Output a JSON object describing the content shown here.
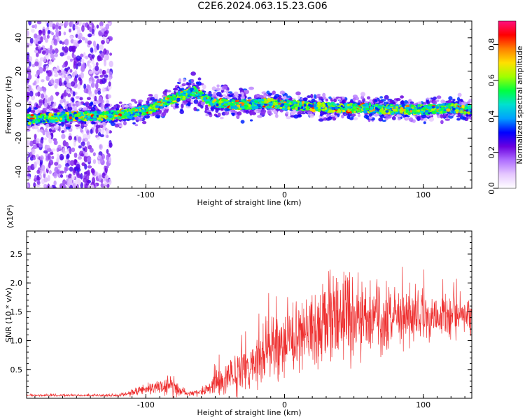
{
  "title": "C2E6.2024.063.15.23.G06",
  "chart_data": [
    {
      "type": "heatmap",
      "xlabel": "Height of straight line (km)",
      "ylabel": "Frequency (Hz)",
      "xlim": [
        -186,
        135
      ],
      "ylim": [
        -50,
        50
      ],
      "xticks": [
        -100,
        0,
        100
      ],
      "xtick_labels": [
        "-100",
        "0",
        "100"
      ],
      "yticks": [
        -40,
        -20,
        0,
        20,
        40
      ],
      "ytick_labels": [
        "-40",
        "-20",
        "0",
        "20",
        "40"
      ],
      "colorbar": {
        "label": "Normalized spectral amplitude",
        "range": [
          0,
          0.93
        ],
        "ticks": [
          0,
          0.2,
          0.4,
          0.6,
          0.8
        ],
        "tick_labels": [
          "0.0",
          "0.2",
          "0.4",
          "0.6",
          "0.8"
        ],
        "colors": [
          "#ffffff",
          "#e6c8ff",
          "#b070ff",
          "#6a00e0",
          "#0000ff",
          "#00a0ff",
          "#00e0d0",
          "#00ff40",
          "#a0ff00",
          "#ffe000",
          "#ff8000",
          "#ff0000",
          "#ff1080"
        ]
      },
      "ridge": {
        "x": [
          -186,
          -160,
          -130,
          -110,
          -95,
          -85,
          -75,
          -65,
          -55,
          -45,
          -35,
          -25,
          -15,
          0,
          20,
          40,
          60,
          80,
          100,
          120,
          135
        ],
        "y": [
          -9,
          -7,
          -7,
          -5,
          -2,
          2,
          5,
          8,
          2,
          1,
          0,
          0,
          1,
          0,
          -1,
          -2,
          -2,
          -3,
          -3,
          -2,
          -3
        ]
      }
    },
    {
      "type": "line",
      "xlabel": "Height of straight line (km)",
      "ylabel": "SNR (10 * v/v)",
      "y_multiplier": "(x10⁴)",
      "xlim": [
        -186,
        135
      ],
      "ylim": [
        0,
        2.9
      ],
      "xticks": [
        -100,
        0,
        100
      ],
      "xtick_labels": [
        "-100",
        "0",
        "100"
      ],
      "yticks": [
        0.5,
        1.0,
        1.5,
        2.0,
        2.5
      ],
      "ytick_labels": [
        "0.5",
        "1.0",
        "1.5",
        "2.0",
        "2.5"
      ],
      "color": "#ee3030",
      "envelope": {
        "x": [
          -186,
          -150,
          -120,
          -110,
          -100,
          -90,
          -80,
          -70,
          -60,
          -50,
          -40,
          -30,
          -20,
          -10,
          0,
          10,
          20,
          30,
          40,
          50,
          60,
          70,
          80,
          90,
          100,
          110,
          120,
          135
        ],
        "mean": [
          0.05,
          0.05,
          0.05,
          0.1,
          0.15,
          0.2,
          0.2,
          0.08,
          0.1,
          0.25,
          0.4,
          0.55,
          0.7,
          0.85,
          0.95,
          1.1,
          1.25,
          1.35,
          1.4,
          1.4,
          1.4,
          1.4,
          1.4,
          1.4,
          1.4,
          1.4,
          1.4,
          1.4
        ],
        "amplitude": [
          0.02,
          0.02,
          0.03,
          0.08,
          0.12,
          0.18,
          0.2,
          0.05,
          0.1,
          0.25,
          0.45,
          0.55,
          0.6,
          0.65,
          0.7,
          0.8,
          0.9,
          1.0,
          1.0,
          0.9,
          0.8,
          0.7,
          0.6,
          0.6,
          0.55,
          0.5,
          0.45,
          0.4
        ]
      }
    }
  ]
}
